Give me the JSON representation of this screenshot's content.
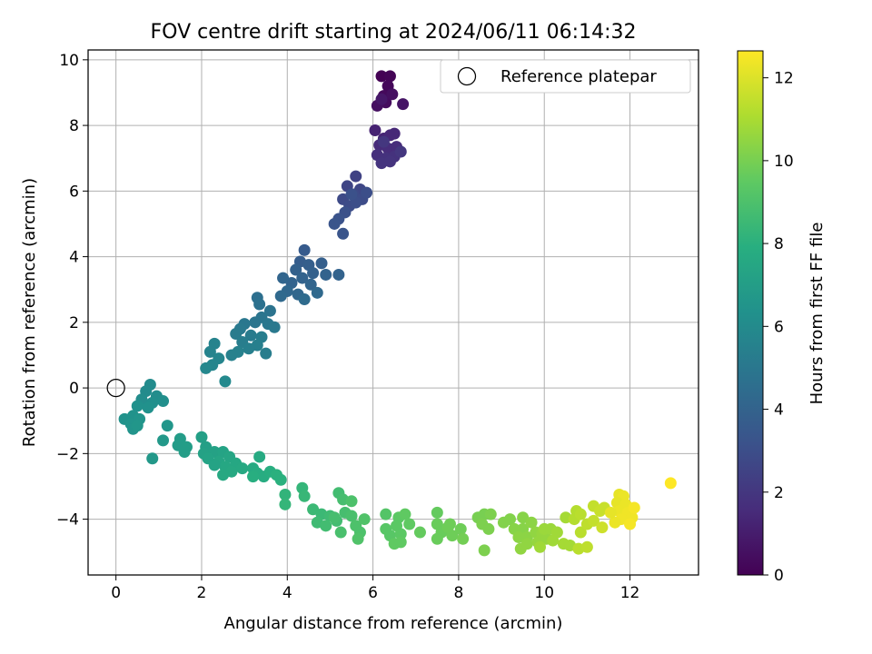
{
  "chart_data": {
    "type": "scatter",
    "title": "FOV centre drift starting at 2024/06/11 06:14:32",
    "xlabel": "Angular distance from reference (arcmin)",
    "ylabel": "Rotation from reference (arcmin)",
    "colorbar_label": "Hours from first FF file",
    "xlim": [
      -0.65,
      13.6
    ],
    "ylim": [
      -5.7,
      10.3
    ],
    "clim": [
      0,
      12.65
    ],
    "xticks": [
      0,
      2,
      4,
      6,
      8,
      10,
      12
    ],
    "yticks": [
      -4,
      -2,
      0,
      2,
      4,
      6,
      8,
      10
    ],
    "cticks": [
      0,
      2,
      4,
      6,
      8,
      10,
      12
    ],
    "grid": true,
    "legend": {
      "placement": "top-right",
      "label": "Reference platepar",
      "marker": "open-circle"
    },
    "colormap": [
      "#440154",
      "#472d7b",
      "#3b528b",
      "#2c728e",
      "#21918c",
      "#28ae80",
      "#5ec962",
      "#addc30",
      "#fde725"
    ],
    "reference_point": {
      "x": 0,
      "y": 0
    },
    "points": [
      {
        "x": 6.2,
        "y": 9.5,
        "t": 0.0
      },
      {
        "x": 6.4,
        "y": 9.5,
        "t": 0.1
      },
      {
        "x": 6.35,
        "y": 9.2,
        "t": 0.2
      },
      {
        "x": 6.25,
        "y": 8.9,
        "t": 0.3
      },
      {
        "x": 6.3,
        "y": 8.7,
        "t": 0.4
      },
      {
        "x": 6.1,
        "y": 8.6,
        "t": 0.5
      },
      {
        "x": 6.45,
        "y": 8.95,
        "t": 0.5
      },
      {
        "x": 6.7,
        "y": 8.65,
        "t": 0.7
      },
      {
        "x": 6.2,
        "y": 8.8,
        "t": 0.8
      },
      {
        "x": 6.05,
        "y": 7.85,
        "t": 1.2
      },
      {
        "x": 6.25,
        "y": 7.6,
        "t": 1.3
      },
      {
        "x": 6.4,
        "y": 7.7,
        "t": 1.4
      },
      {
        "x": 6.5,
        "y": 7.75,
        "t": 1.4
      },
      {
        "x": 6.15,
        "y": 7.4,
        "t": 1.5
      },
      {
        "x": 6.35,
        "y": 7.3,
        "t": 1.6
      },
      {
        "x": 6.55,
        "y": 7.35,
        "t": 1.6
      },
      {
        "x": 6.1,
        "y": 7.1,
        "t": 1.7
      },
      {
        "x": 6.3,
        "y": 7.0,
        "t": 1.8
      },
      {
        "x": 6.5,
        "y": 7.05,
        "t": 1.8
      },
      {
        "x": 6.2,
        "y": 6.85,
        "t": 1.9
      },
      {
        "x": 6.4,
        "y": 6.9,
        "t": 1.9
      },
      {
        "x": 6.65,
        "y": 7.2,
        "t": 2.0
      },
      {
        "x": 6.25,
        "y": 7.5,
        "t": 2.0
      },
      {
        "x": 5.6,
        "y": 6.45,
        "t": 2.5
      },
      {
        "x": 5.4,
        "y": 6.15,
        "t": 2.6
      },
      {
        "x": 5.7,
        "y": 6.05,
        "t": 2.7
      },
      {
        "x": 5.55,
        "y": 5.9,
        "t": 2.8
      },
      {
        "x": 5.3,
        "y": 5.75,
        "t": 2.8
      },
      {
        "x": 5.45,
        "y": 5.55,
        "t": 2.9
      },
      {
        "x": 5.75,
        "y": 5.75,
        "t": 2.9
      },
      {
        "x": 5.85,
        "y": 5.95,
        "t": 3.0
      },
      {
        "x": 5.6,
        "y": 5.65,
        "t": 3.0
      },
      {
        "x": 5.35,
        "y": 5.35,
        "t": 3.1
      },
      {
        "x": 5.2,
        "y": 5.15,
        "t": 3.2
      },
      {
        "x": 5.1,
        "y": 5.0,
        "t": 3.3
      },
      {
        "x": 5.3,
        "y": 4.7,
        "t": 3.3
      },
      {
        "x": 5.5,
        "y": 5.9,
        "t": 3.1
      },
      {
        "x": 4.4,
        "y": 4.2,
        "t": 3.6
      },
      {
        "x": 4.3,
        "y": 3.85,
        "t": 3.7
      },
      {
        "x": 4.5,
        "y": 3.75,
        "t": 3.8
      },
      {
        "x": 4.8,
        "y": 3.8,
        "t": 3.8
      },
      {
        "x": 4.6,
        "y": 3.5,
        "t": 3.9
      },
      {
        "x": 4.2,
        "y": 3.6,
        "t": 3.9
      },
      {
        "x": 4.35,
        "y": 3.35,
        "t": 4.0
      },
      {
        "x": 4.1,
        "y": 3.2,
        "t": 4.0
      },
      {
        "x": 4.55,
        "y": 3.15,
        "t": 4.1
      },
      {
        "x": 3.9,
        "y": 3.35,
        "t": 4.1
      },
      {
        "x": 4.0,
        "y": 2.95,
        "t": 4.2
      },
      {
        "x": 4.25,
        "y": 2.85,
        "t": 4.2
      },
      {
        "x": 4.7,
        "y": 2.9,
        "t": 4.3
      },
      {
        "x": 3.85,
        "y": 2.8,
        "t": 4.3
      },
      {
        "x": 4.4,
        "y": 2.7,
        "t": 4.4
      },
      {
        "x": 5.2,
        "y": 3.45,
        "t": 4.0
      },
      {
        "x": 4.9,
        "y": 3.45,
        "t": 4.0
      },
      {
        "x": 3.3,
        "y": 2.75,
        "t": 4.6
      },
      {
        "x": 3.35,
        "y": 2.55,
        "t": 4.7
      },
      {
        "x": 3.6,
        "y": 2.35,
        "t": 4.8
      },
      {
        "x": 3.4,
        "y": 2.15,
        "t": 4.9
      },
      {
        "x": 3.25,
        "y": 2.0,
        "t": 4.9
      },
      {
        "x": 3.55,
        "y": 1.95,
        "t": 5.0
      },
      {
        "x": 3.0,
        "y": 1.95,
        "t": 5.0
      },
      {
        "x": 2.9,
        "y": 1.8,
        "t": 5.1
      },
      {
        "x": 3.7,
        "y": 1.85,
        "t": 5.1
      },
      {
        "x": 2.8,
        "y": 1.65,
        "t": 5.2
      },
      {
        "x": 3.15,
        "y": 1.6,
        "t": 5.2
      },
      {
        "x": 3.4,
        "y": 1.55,
        "t": 5.3
      },
      {
        "x": 2.95,
        "y": 1.4,
        "t": 5.3
      },
      {
        "x": 3.3,
        "y": 1.3,
        "t": 5.4
      },
      {
        "x": 3.1,
        "y": 1.2,
        "t": 5.4
      },
      {
        "x": 2.85,
        "y": 1.1,
        "t": 5.5
      },
      {
        "x": 2.7,
        "y": 1.0,
        "t": 5.5
      },
      {
        "x": 2.3,
        "y": 1.35,
        "t": 5.6
      },
      {
        "x": 2.2,
        "y": 1.1,
        "t": 5.6
      },
      {
        "x": 2.4,
        "y": 0.9,
        "t": 5.7
      },
      {
        "x": 2.25,
        "y": 0.7,
        "t": 5.7
      },
      {
        "x": 2.1,
        "y": 0.6,
        "t": 5.8
      },
      {
        "x": 2.55,
        "y": 0.2,
        "t": 5.9
      },
      {
        "x": 3.5,
        "y": 1.05,
        "t": 5.3
      },
      {
        "x": 0.8,
        "y": 0.1,
        "t": 6.0
      },
      {
        "x": 0.7,
        "y": -0.1,
        "t": 6.0
      },
      {
        "x": 0.95,
        "y": -0.25,
        "t": 6.1
      },
      {
        "x": 0.6,
        "y": -0.35,
        "t": 6.1
      },
      {
        "x": 0.85,
        "y": -0.45,
        "t": 6.2
      },
      {
        "x": 1.1,
        "y": -0.4,
        "t": 6.2
      },
      {
        "x": 0.5,
        "y": -0.55,
        "t": 6.3
      },
      {
        "x": 0.75,
        "y": -0.6,
        "t": 6.3
      },
      {
        "x": 0.4,
        "y": -0.85,
        "t": 6.4
      },
      {
        "x": 0.2,
        "y": -0.95,
        "t": 6.4
      },
      {
        "x": 0.55,
        "y": -0.95,
        "t": 6.5
      },
      {
        "x": 0.35,
        "y": -1.1,
        "t": 6.5
      },
      {
        "x": 0.4,
        "y": -1.25,
        "t": 6.5
      },
      {
        "x": 0.5,
        "y": -1.15,
        "t": 6.6
      },
      {
        "x": 1.2,
        "y": -1.15,
        "t": 6.6
      },
      {
        "x": 1.1,
        "y": -1.6,
        "t": 6.7
      },
      {
        "x": 0.85,
        "y": -2.15,
        "t": 6.7
      },
      {
        "x": 1.5,
        "y": -1.55,
        "t": 6.9
      },
      {
        "x": 1.45,
        "y": -1.75,
        "t": 6.9
      },
      {
        "x": 1.65,
        "y": -1.8,
        "t": 7.0
      },
      {
        "x": 1.6,
        "y": -1.95,
        "t": 7.0
      },
      {
        "x": 2.0,
        "y": -1.5,
        "t": 7.1
      },
      {
        "x": 2.1,
        "y": -1.8,
        "t": 7.1
      },
      {
        "x": 2.05,
        "y": -2.0,
        "t": 7.2
      },
      {
        "x": 2.3,
        "y": -1.95,
        "t": 7.2
      },
      {
        "x": 2.15,
        "y": -2.15,
        "t": 7.3
      },
      {
        "x": 2.5,
        "y": -1.95,
        "t": 7.3
      },
      {
        "x": 2.4,
        "y": -2.25,
        "t": 7.4
      },
      {
        "x": 2.65,
        "y": -2.1,
        "t": 7.4
      },
      {
        "x": 2.55,
        "y": -2.4,
        "t": 7.5
      },
      {
        "x": 2.8,
        "y": -2.3,
        "t": 7.5
      },
      {
        "x": 2.7,
        "y": -2.55,
        "t": 7.6
      },
      {
        "x": 2.95,
        "y": -2.45,
        "t": 7.6
      },
      {
        "x": 2.5,
        "y": -2.65,
        "t": 7.6
      },
      {
        "x": 3.2,
        "y": -2.45,
        "t": 7.7
      },
      {
        "x": 3.35,
        "y": -2.1,
        "t": 7.7
      },
      {
        "x": 3.3,
        "y": -2.6,
        "t": 7.8
      },
      {
        "x": 3.45,
        "y": -2.7,
        "t": 7.8
      },
      {
        "x": 3.6,
        "y": -2.55,
        "t": 7.9
      },
      {
        "x": 3.2,
        "y": -2.7,
        "t": 7.9
      },
      {
        "x": 3.75,
        "y": -2.65,
        "t": 8.0
      },
      {
        "x": 3.85,
        "y": -2.8,
        "t": 8.0
      },
      {
        "x": 2.3,
        "y": -2.35,
        "t": 7.3
      },
      {
        "x": 3.95,
        "y": -3.25,
        "t": 8.2
      },
      {
        "x": 3.95,
        "y": -3.55,
        "t": 8.3
      },
      {
        "x": 4.35,
        "y": -3.05,
        "t": 8.3
      },
      {
        "x": 4.4,
        "y": -3.3,
        "t": 8.4
      },
      {
        "x": 4.6,
        "y": -3.7,
        "t": 8.5
      },
      {
        "x": 4.8,
        "y": -3.85,
        "t": 8.5
      },
      {
        "x": 4.7,
        "y": -4.1,
        "t": 8.6
      },
      {
        "x": 5.0,
        "y": -3.9,
        "t": 8.6
      },
      {
        "x": 4.9,
        "y": -4.2,
        "t": 8.7
      },
      {
        "x": 5.15,
        "y": -4.05,
        "t": 8.7
      },
      {
        "x": 5.2,
        "y": -3.2,
        "t": 8.7
      },
      {
        "x": 5.3,
        "y": -3.4,
        "t": 8.8
      },
      {
        "x": 5.35,
        "y": -3.8,
        "t": 8.8
      },
      {
        "x": 5.5,
        "y": -3.9,
        "t": 8.9
      },
      {
        "x": 5.25,
        "y": -4.4,
        "t": 8.9
      },
      {
        "x": 5.6,
        "y": -4.2,
        "t": 9.0
      },
      {
        "x": 5.5,
        "y": -3.45,
        "t": 9.0
      },
      {
        "x": 5.7,
        "y": -4.4,
        "t": 9.0
      },
      {
        "x": 5.65,
        "y": -4.6,
        "t": 9.1
      },
      {
        "x": 5.8,
        "y": -4.0,
        "t": 9.1
      },
      {
        "x": 5.1,
        "y": -3.95,
        "t": 8.8
      },
      {
        "x": 6.3,
        "y": -3.85,
        "t": 9.2
      },
      {
        "x": 6.3,
        "y": -4.3,
        "t": 9.3
      },
      {
        "x": 6.4,
        "y": -4.5,
        "t": 9.3
      },
      {
        "x": 6.6,
        "y": -3.95,
        "t": 9.4
      },
      {
        "x": 6.55,
        "y": -4.2,
        "t": 9.4
      },
      {
        "x": 6.65,
        "y": -4.45,
        "t": 9.4
      },
      {
        "x": 6.5,
        "y": -4.75,
        "t": 9.5
      },
      {
        "x": 6.65,
        "y": -4.7,
        "t": 9.5
      },
      {
        "x": 6.85,
        "y": -4.15,
        "t": 9.5
      },
      {
        "x": 6.75,
        "y": -3.85,
        "t": 9.5
      },
      {
        "x": 7.1,
        "y": -4.4,
        "t": 9.6
      },
      {
        "x": 7.5,
        "y": -3.8,
        "t": 9.6
      },
      {
        "x": 7.5,
        "y": -4.15,
        "t": 9.7
      },
      {
        "x": 7.6,
        "y": -4.4,
        "t": 9.7
      },
      {
        "x": 7.5,
        "y": -4.6,
        "t": 9.7
      },
      {
        "x": 7.8,
        "y": -4.15,
        "t": 9.8
      },
      {
        "x": 7.85,
        "y": -4.5,
        "t": 9.8
      },
      {
        "x": 8.05,
        "y": -4.3,
        "t": 9.8
      },
      {
        "x": 8.1,
        "y": -4.6,
        "t": 9.9
      },
      {
        "x": 7.75,
        "y": -4.25,
        "t": 9.8
      },
      {
        "x": 8.45,
        "y": -3.95,
        "t": 10.0
      },
      {
        "x": 8.6,
        "y": -3.85,
        "t": 10.0
      },
      {
        "x": 8.55,
        "y": -4.15,
        "t": 10.1
      },
      {
        "x": 8.75,
        "y": -3.85,
        "t": 10.1
      },
      {
        "x": 8.7,
        "y": -4.3,
        "t": 10.1
      },
      {
        "x": 8.6,
        "y": -4.95,
        "t": 10.1
      },
      {
        "x": 9.05,
        "y": -4.1,
        "t": 10.2
      },
      {
        "x": 9.2,
        "y": -4.0,
        "t": 10.2
      },
      {
        "x": 9.3,
        "y": -4.3,
        "t": 10.3
      },
      {
        "x": 9.5,
        "y": -3.95,
        "t": 10.3
      },
      {
        "x": 9.5,
        "y": -4.3,
        "t": 10.3
      },
      {
        "x": 9.4,
        "y": -4.55,
        "t": 10.4
      },
      {
        "x": 9.6,
        "y": -4.55,
        "t": 10.4
      },
      {
        "x": 9.7,
        "y": -4.1,
        "t": 10.4
      },
      {
        "x": 9.45,
        "y": -4.9,
        "t": 10.5
      },
      {
        "x": 9.6,
        "y": -4.75,
        "t": 10.5
      },
      {
        "x": 9.8,
        "y": -4.4,
        "t": 10.5
      },
      {
        "x": 9.85,
        "y": -4.7,
        "t": 10.6
      },
      {
        "x": 9.95,
        "y": -4.45,
        "t": 10.6
      },
      {
        "x": 10.05,
        "y": -4.6,
        "t": 10.6
      },
      {
        "x": 10.0,
        "y": -4.3,
        "t": 10.7
      },
      {
        "x": 10.15,
        "y": -4.3,
        "t": 10.7
      },
      {
        "x": 10.2,
        "y": -4.65,
        "t": 10.8
      },
      {
        "x": 10.3,
        "y": -4.4,
        "t": 10.8
      },
      {
        "x": 9.9,
        "y": -4.85,
        "t": 10.8
      },
      {
        "x": 10.45,
        "y": -4.75,
        "t": 10.9
      },
      {
        "x": 10.6,
        "y": -4.8,
        "t": 10.9
      },
      {
        "x": 10.5,
        "y": -3.95,
        "t": 10.9
      },
      {
        "x": 10.75,
        "y": -3.75,
        "t": 11.2
      },
      {
        "x": 10.7,
        "y": -4.0,
        "t": 11.2
      },
      {
        "x": 10.85,
        "y": -3.85,
        "t": 11.3
      },
      {
        "x": 10.85,
        "y": -4.4,
        "t": 11.3
      },
      {
        "x": 10.8,
        "y": -4.9,
        "t": 11.3
      },
      {
        "x": 11.0,
        "y": -4.85,
        "t": 11.4
      },
      {
        "x": 11.0,
        "y": -4.15,
        "t": 11.4
      },
      {
        "x": 11.15,
        "y": -3.6,
        "t": 11.5
      },
      {
        "x": 11.15,
        "y": -4.05,
        "t": 11.5
      },
      {
        "x": 11.3,
        "y": -3.75,
        "t": 11.6
      },
      {
        "x": 11.4,
        "y": -3.65,
        "t": 11.6
      },
      {
        "x": 11.35,
        "y": -4.25,
        "t": 11.7
      },
      {
        "x": 11.75,
        "y": -3.25,
        "t": 12.2
      },
      {
        "x": 11.85,
        "y": -3.3,
        "t": 12.3
      },
      {
        "x": 11.7,
        "y": -3.5,
        "t": 12.2
      },
      {
        "x": 11.9,
        "y": -3.55,
        "t": 12.3
      },
      {
        "x": 11.75,
        "y": -3.75,
        "t": 12.3
      },
      {
        "x": 11.95,
        "y": -3.8,
        "t": 12.4
      },
      {
        "x": 12.05,
        "y": -3.95,
        "t": 12.4
      },
      {
        "x": 11.8,
        "y": -4.0,
        "t": 12.4
      },
      {
        "x": 12.1,
        "y": -3.65,
        "t": 12.5
      },
      {
        "x": 12.0,
        "y": -4.15,
        "t": 12.5
      },
      {
        "x": 11.65,
        "y": -4.1,
        "t": 12.3
      },
      {
        "x": 11.55,
        "y": -3.8,
        "t": 12.2
      },
      {
        "x": 12.95,
        "y": -2.9,
        "t": 12.65
      }
    ]
  }
}
